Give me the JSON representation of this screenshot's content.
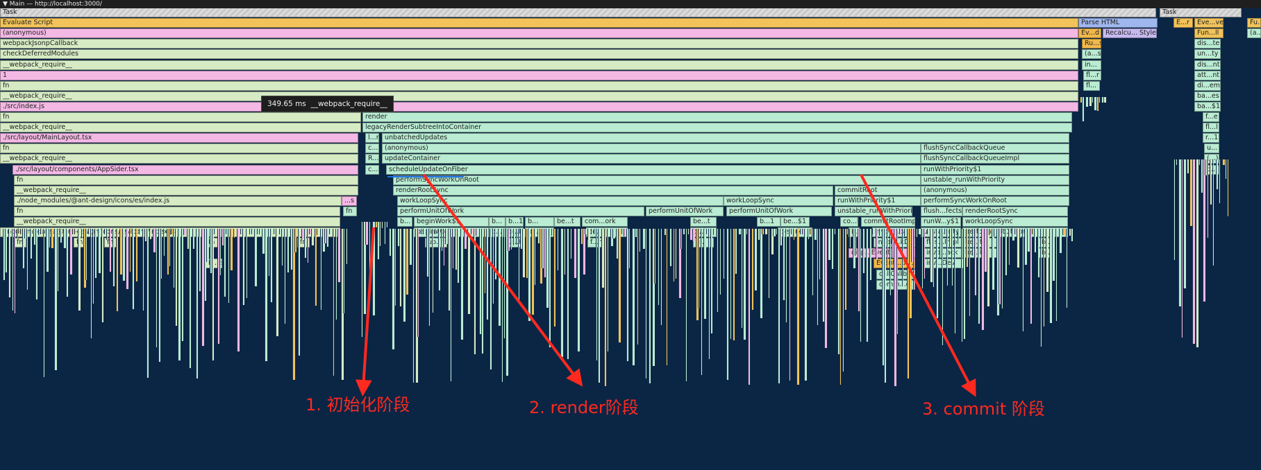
{
  "header": {
    "title": "▼ Main — http://localhost:3000/"
  },
  "tooltip": {
    "duration": "349.65 ms",
    "name": "__webpack_require__"
  },
  "annotations": [
    {
      "text": "1. 初始化阶段"
    },
    {
      "text": "2. render阶段"
    },
    {
      "text": "3. commit 阶段"
    }
  ],
  "colors": {
    "accent": "#ff2a1f",
    "background": "#0b2545",
    "selection": "#1a73e8"
  },
  "flame": {
    "rows": [
      {
        "labels": [
          "Task",
          "Task"
        ]
      },
      {
        "labels": [
          "Evaluate Script",
          "Parse HTML",
          "E...r",
          "Eve...ver",
          "Fu..."
        ]
      },
      {
        "labels": [
          "(anonymous)",
          "Ev...d",
          "Recalcu... Style",
          "Fun...ll",
          "(a..."
        ]
      },
      {
        "labels": [
          "webpackJsonpCallback",
          "Ru...s",
          "dis...te"
        ]
      },
      {
        "labels": [
          "checkDeferredModules",
          "(a...s)",
          "un...ty"
        ]
      },
      {
        "labels": [
          "__webpack_require__",
          "in...",
          "dis...nt"
        ]
      },
      {
        "labels": [
          "1",
          "fl...r",
          "att...nt"
        ]
      },
      {
        "labels": [
          "fn",
          "fl...",
          "di...em"
        ]
      },
      {
        "labels": [
          "__webpack_require__",
          "ba...es"
        ]
      },
      {
        "labels": [
          "./src/index.js",
          "ba...$1"
        ]
      },
      {
        "labels": [
          "fn",
          "render",
          "f...e"
        ]
      },
      {
        "labels": [
          "__webpack_require__",
          "legacyRenderSubtreeIntoContainer",
          "fl...l"
        ]
      },
      {
        "labels": [
          "./src/layout/MainLayout.tsx",
          "l...r",
          "unbatchedUpdates",
          "r...1"
        ]
      },
      {
        "labels": [
          "fn",
          "c...",
          "(anonymous)",
          "flushSyncCallbackQueue",
          "u..."
        ]
      },
      {
        "labels": [
          "__webpack_require__",
          "R...",
          "updateContainer",
          "flushSyncCallbackQueueImpl",
          "(...)"
        ]
      },
      {
        "labels": [
          "./src/layout/components/AppSider.tsx",
          "c...l",
          "scheduleUpdateOnFiber",
          "runWithPriority$1",
          "p..."
        ]
      },
      {
        "labels": [
          "fn",
          "performSyncWorkOnRoot",
          "unstable_runWithPriority"
        ]
      },
      {
        "labels": [
          "__webpack_require__",
          "renderRootSync",
          "commitRoot",
          "(anonymous)"
        ]
      },
      {
        "labels": [
          "./node_modules/@ant-design/icons/es/index.js",
          "...s",
          "workLoopSync",
          "workLoopSync",
          "runWithPriority$1",
          "performSyncWorkOnRoot"
        ]
      },
      {
        "labels": [
          "fn",
          "fn",
          "performUnitOfWork",
          "performUnitOfWork",
          "performUnitOfWork",
          "unstable_runWithPriority",
          "flush...fects",
          "renderRootSync"
        ]
      },
      {
        "labels": [
          "__webpack_require__",
          "b...",
          "beginWork$1",
          "b...",
          "b...1",
          "b...",
          "be...t",
          "com...ork",
          "be...t",
          "b...1",
          "be...$1",
          "co...l",
          "commitRootImpl",
          "runW...y$1",
          "workLoopSync"
        ]
      },
      {
        "labels": [
          "./node_modules/@ant-design/icons/es/icons/index.js",
          "beginWork",
          "b...",
          "b...k",
          "b...",
          "co...k",
          "b...k",
          "be...rk",
          "i...",
          "invok...back",
          "unsta...rity",
          "performUnitOfWork"
        ]
      },
      {
        "labels": [
          "fn",
          "fn",
          "fn",
          "fn",
          "fn",
          "up...t",
          "u...t",
          "f...n",
          "u...",
          "invok...kDev",
          "flus...Impl",
          "be...t",
          "b..."
        ]
      },
      {
        "labels": [
          "disp...Event",
          "invo...ack",
          "be...k",
          "b..."
        ]
      },
      {
        "labels": [
          "h...e",
          "Event...back",
          "inv...Dev"
        ]
      },
      {
        "labels": [
          "callCallback"
        ]
      },
      {
        "labels": [
          "comm...ct"
        ]
      }
    ]
  }
}
